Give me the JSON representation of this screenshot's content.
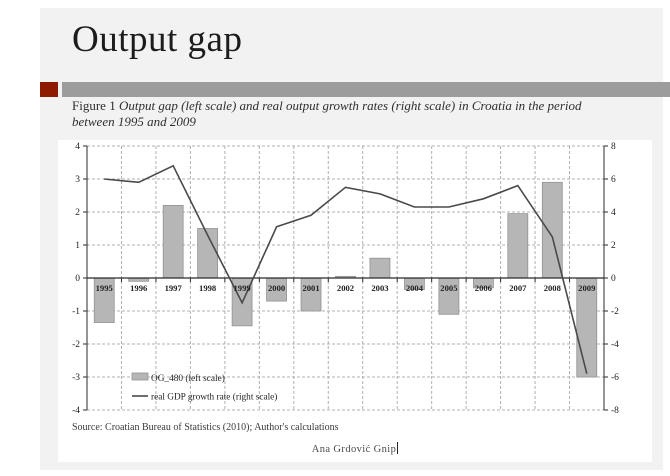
{
  "slide": {
    "title": "Output gap",
    "caption": {
      "prefix": "Figure 1 ",
      "italic": "Output gap (left scale) and real output growth rates (right scale) in Croatia in the period between 1995 and 2009"
    },
    "source_note": "Source: Croatian Bureau of Statistics (2010); Author's calculations",
    "footer_author": "Ana Grdović Gnip",
    "colors": {
      "accent": "#8e1a00",
      "band": "#9c9c9c",
      "slide_bg": "#f2f2f2"
    }
  },
  "chart_data": {
    "type": "bar",
    "subtype": "bar-and-line combo, dual axis",
    "categories": [
      "1995",
      "1996",
      "1997",
      "1998",
      "1999",
      "2000",
      "2001",
      "2002",
      "2003",
      "2004",
      "2005",
      "2006",
      "2007",
      "2008",
      "2009"
    ],
    "series": [
      {
        "name": "OG_480 (left scale)",
        "type": "bar",
        "axis": "left",
        "values": [
          -1.35,
          -0.1,
          2.2,
          1.5,
          -1.45,
          -0.7,
          -1.0,
          0.05,
          0.6,
          -0.35,
          -1.1,
          -0.3,
          1.95,
          2.9,
          -3.0
        ]
      },
      {
        "name": "real GDP growth rate (right scale)",
        "type": "line",
        "axis": "right",
        "values": [
          6.0,
          5.8,
          6.8,
          2.6,
          -1.5,
          3.1,
          3.8,
          5.5,
          5.1,
          4.3,
          4.3,
          4.8,
          5.6,
          2.5,
          -5.8
        ]
      }
    ],
    "left_axis": {
      "min": -4,
      "max": 4,
      "ticks": [
        4,
        3,
        2,
        1,
        0,
        -1,
        -2,
        -3,
        -4
      ]
    },
    "right_axis": {
      "min": -8,
      "max": 8,
      "ticks": [
        8,
        6,
        4,
        2,
        0,
        -2,
        -4,
        -6,
        -8
      ]
    },
    "grid": "dashed horizontal and vertical gridlines",
    "legend_position": "inside bottom-left",
    "colors": {
      "bar": "#b6b6b6",
      "bar_border": "#8f8f8f",
      "line": "#4a4a4a",
      "grid": "#b0b0b0",
      "axis": "#2b2b2b"
    }
  }
}
